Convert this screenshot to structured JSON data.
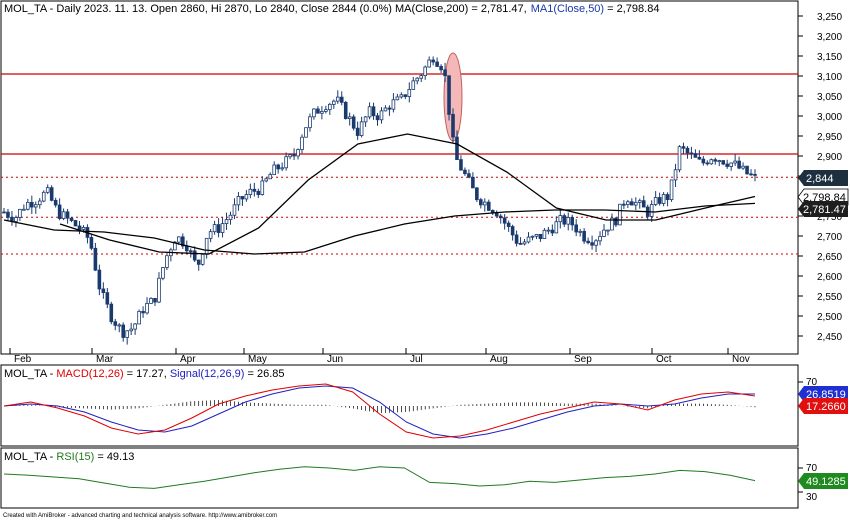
{
  "header": {
    "symbol": "MOL_TA",
    "info": " - Daily 2023. 11. 13. Open 2860, Hi 2870, Lo 2840, Close 2844 (0.0%) ",
    "ma200_label": "MA(Close,200) = 2,781.47,",
    "ma50_label": "MA1(Close,50)",
    "ma50_value": " = 2,798.84"
  },
  "price_axis": {
    "ticks": [
      "3,250",
      "3,200",
      "3,150",
      "3,100",
      "3,050",
      "3,000",
      "2,950",
      "2,900",
      "2,850",
      "2,800",
      "2,750",
      "2,700",
      "2,650",
      "2,600",
      "2,550",
      "2,500",
      "2,450"
    ],
    "markers": {
      "close": "2,844",
      "ma50": "2,798.84",
      "ma200": "2,781.47"
    }
  },
  "months": [
    "Feb",
    "Mar",
    "Apr",
    "May",
    "Jun",
    "Jul",
    "Aug",
    "Sep",
    "Oct",
    "Nov"
  ],
  "macd_panel": {
    "symbol": "MOL_TA - ",
    "macd_name": "MACD(12,26)",
    "macd_value": " = 17.27, ",
    "signal_name": "Signal(12,26,9)",
    "signal_value": " = 26.85",
    "axis_top": "70",
    "signal_marker": "26.8519",
    "macd_marker": "17.2660"
  },
  "rsi_panel": {
    "symbol": "MOL_TA - ",
    "rsi_name": "RSI(15)",
    "rsi_value": " = 49.13",
    "ticks": [
      "70",
      "30"
    ],
    "marker": "49.1285"
  },
  "footer": "Created with AmiBroker - advanced charting and technical analysis software. http://www.amibroker.com",
  "colors": {
    "price": "#1a3a6e",
    "ma": "#000000",
    "resistance": "#cc0000",
    "highlight": "#f4b8b8",
    "macd": "#e00000",
    "signal": "#2020c0",
    "rsi": "#207a20"
  },
  "chart_data": [
    {
      "type": "candlestick",
      "title": "MOL_TA - Daily 2023. 11. 13.",
      "ylim": [
        2410,
        3260
      ],
      "x": [
        "Feb",
        "Mar",
        "Apr",
        "May",
        "Jun",
        "Jul",
        "Aug",
        "Sep",
        "Oct",
        "Nov"
      ],
      "series": [
        {
          "name": "MOL_TA",
          "approx_close": [
            2760,
            2745,
            2780,
            2790,
            2810,
            2760,
            2740,
            2720,
            2690,
            2560,
            2500,
            2460,
            2470,
            2520,
            2540,
            2640,
            2700,
            2680,
            2620,
            2710,
            2720,
            2750,
            2790,
            2810,
            2820,
            2860,
            2880,
            2900,
            2970,
            3010,
            3030,
            3040,
            3000,
            2960,
            3010,
            3000,
            3030,
            3040,
            3080,
            3110,
            3150,
            3120,
            2900,
            2850,
            2800,
            2780,
            2760,
            2720,
            2680,
            2690,
            2700,
            2720,
            2740,
            2730,
            2700,
            2690,
            2720,
            2740,
            2800,
            2780,
            2760,
            2790,
            2800,
            2920,
            2900,
            2880,
            2900,
            2890,
            2880,
            2860,
            2844
          ]
        },
        {
          "name": "MA(Close,200)",
          "approx": [
            2740,
            2715,
            2710,
            2695,
            2665,
            2655,
            2660,
            2700,
            2730,
            2750,
            2760,
            2765,
            2765,
            2760,
            2775,
            2781.47
          ]
        },
        {
          "name": "MA1(Close,50)",
          "approx": [
            2730,
            2690,
            2660,
            2655,
            2720,
            2840,
            2930,
            2955,
            2930,
            2860,
            2770,
            2740,
            2740,
            2770,
            2798.84
          ]
        }
      ],
      "hlines": [
        {
          "value": 3105,
          "style": "solid"
        },
        {
          "value": 2905,
          "style": "solid"
        },
        {
          "value": 2847,
          "style": "dotted"
        },
        {
          "value": 2747,
          "style": "dotted"
        },
        {
          "value": 2655,
          "style": "dotted"
        }
      ]
    },
    {
      "type": "line",
      "title": "MACD(12,26)",
      "series": [
        {
          "name": "MACD(12,26)",
          "latest": 17.27
        },
        {
          "name": "Signal(12,26,9)",
          "latest": 26.85
        }
      ]
    },
    {
      "type": "line",
      "title": "RSI(15)",
      "series": [
        {
          "name": "RSI(15)",
          "latest": 49.13
        }
      ],
      "yticks": [
        70,
        30
      ]
    }
  ]
}
